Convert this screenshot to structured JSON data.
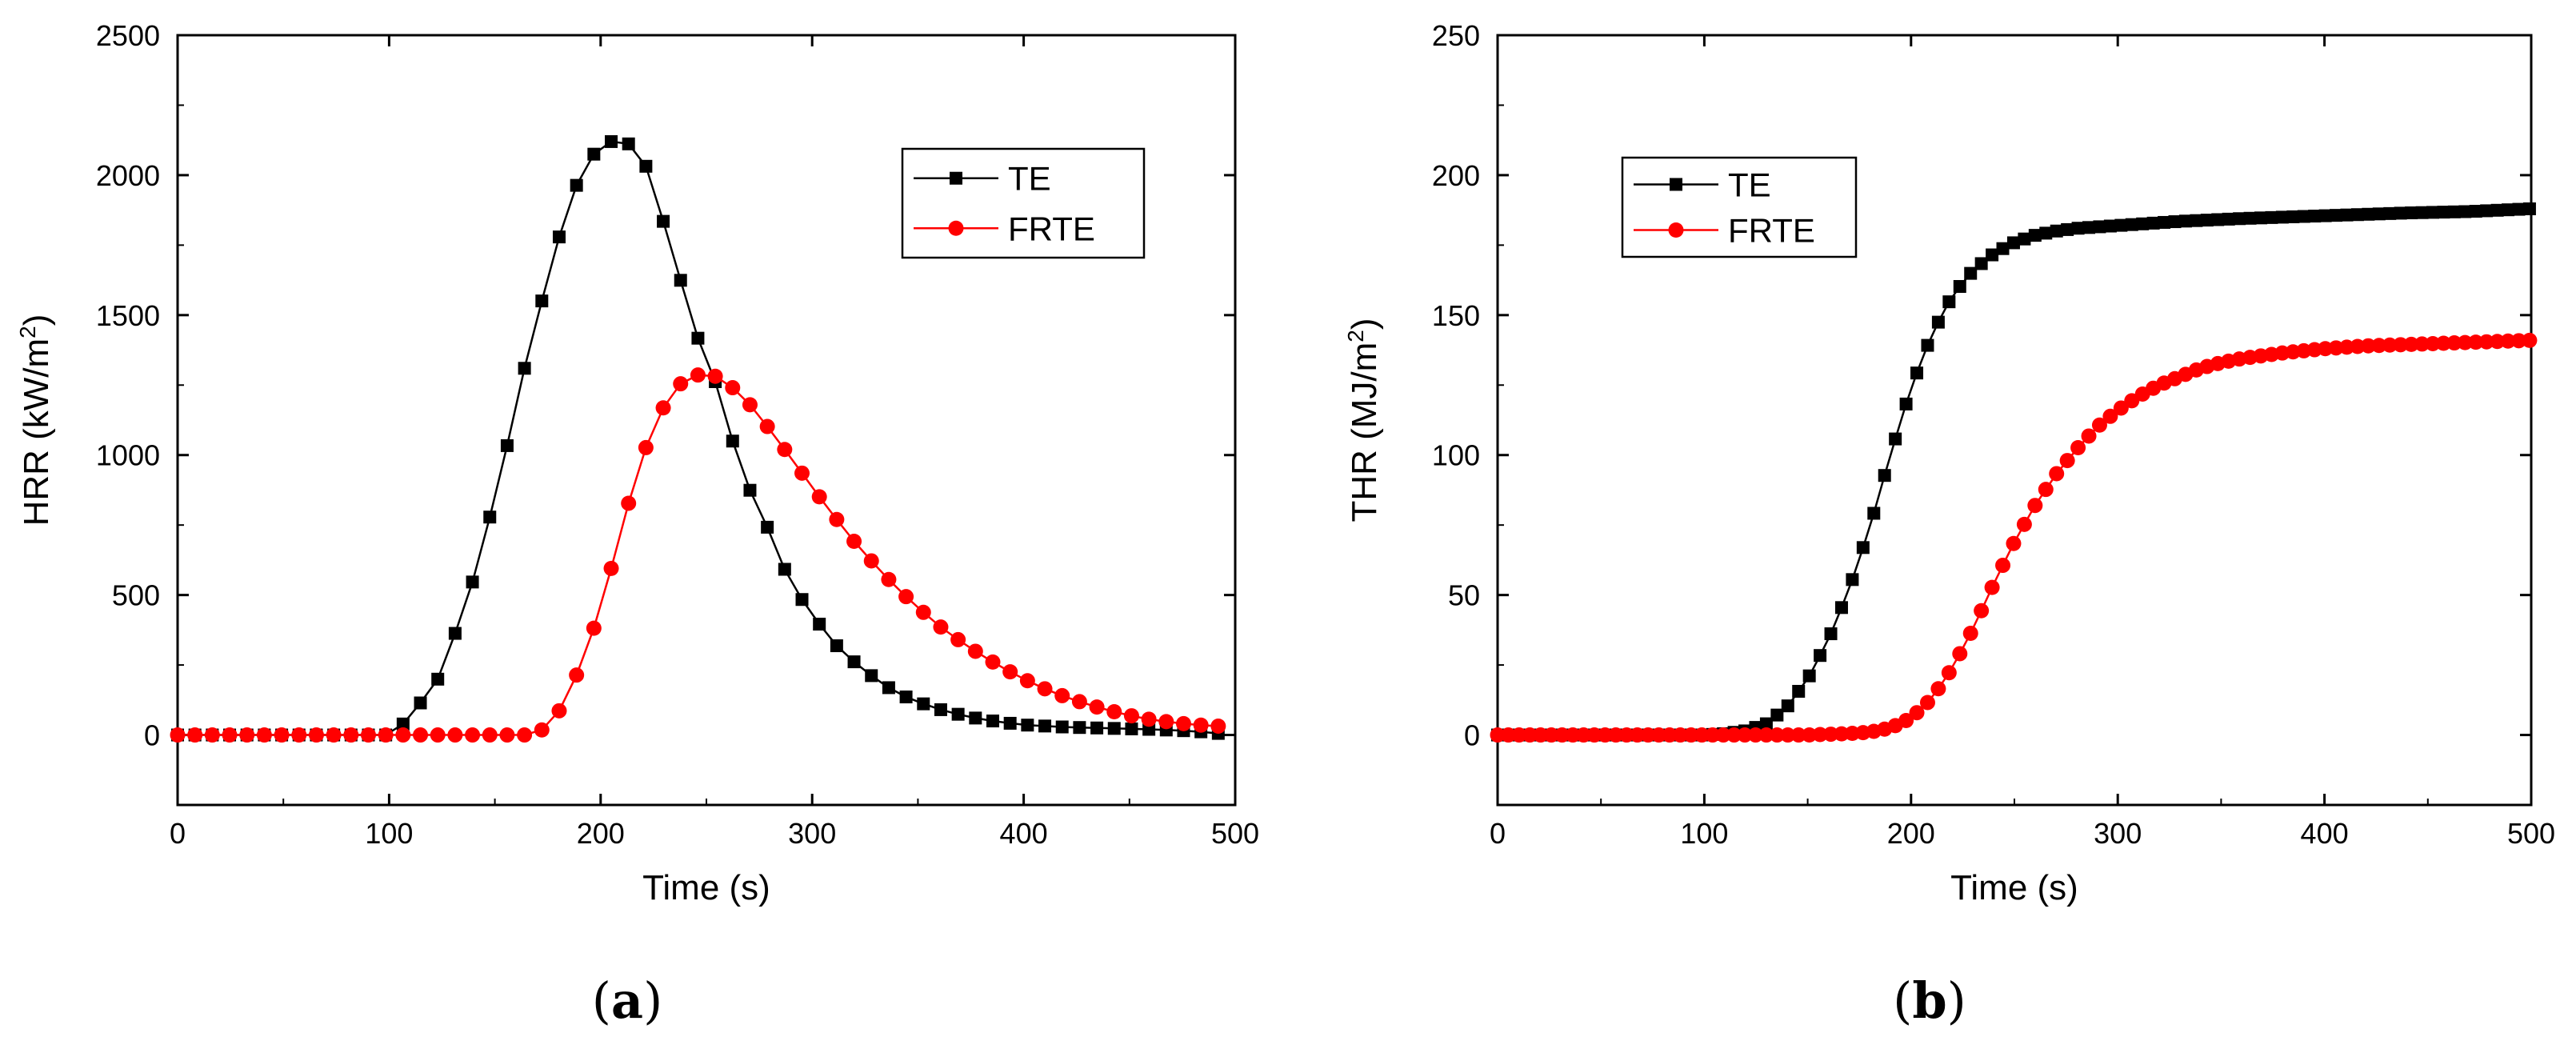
{
  "chart_data": [
    {
      "type": "line",
      "panel": "a",
      "caption_open": "(",
      "caption_letter": "a",
      "caption_close": ")",
      "xlabel": "Time (s)",
      "ylabel_main": "HRR (kW/m",
      "ylabel_sup": "2",
      "ylabel_end": ")",
      "xlim": [
        0,
        500
      ],
      "ylim": [
        -250,
        2500
      ],
      "xticks": [
        0,
        100,
        200,
        300,
        400,
        500
      ],
      "yticks": [
        0,
        500,
        1000,
        1500,
        2000,
        2500
      ],
      "legend_position": "top-right",
      "series": [
        {
          "name": "TE",
          "color": "#000000",
          "marker": "square",
          "points": [
            [
              0,
              0
            ],
            [
              100,
              0
            ],
            [
              104,
              10
            ],
            [
              108,
              55
            ],
            [
              116,
              125
            ],
            [
              124,
              210
            ],
            [
              132,
              380
            ],
            [
              140,
              560
            ],
            [
              148,
              790
            ],
            [
              156,
              1040
            ],
            [
              164,
              1310
            ],
            [
              172,
              1545
            ],
            [
              180,
              1770
            ],
            [
              188,
              1955
            ],
            [
              196,
              2070
            ],
            [
              204,
              2120
            ],
            [
              212,
              2120
            ],
            [
              220,
              2065
            ],
            [
              228,
              1875
            ],
            [
              236,
              1675
            ],
            [
              244,
              1450
            ],
            [
              252,
              1320
            ],
            [
              260,
              1110
            ],
            [
              268,
              910
            ],
            [
              276,
              800
            ],
            [
              284,
              635
            ],
            [
              292,
              520
            ],
            [
              300,
              430
            ],
            [
              310,
              330
            ],
            [
              320,
              260
            ],
            [
              330,
              200
            ],
            [
              340,
              150
            ],
            [
              350,
              118
            ],
            [
              360,
              92
            ],
            [
              370,
              72
            ],
            [
              380,
              56
            ],
            [
              390,
              45
            ],
            [
              400,
              36
            ],
            [
              420,
              28
            ],
            [
              440,
              24
            ],
            [
              460,
              20
            ],
            [
              480,
              14
            ],
            [
              500,
              0
            ]
          ]
        },
        {
          "name": "FRTE",
          "color": "#ff0000",
          "marker": "circle",
          "points": [
            [
              0,
              0
            ],
            [
              40,
              0
            ],
            [
              80,
              0
            ],
            [
              120,
              0
            ],
            [
              160,
              0
            ],
            [
              168,
              0
            ],
            [
              175,
              30
            ],
            [
              180,
              80
            ],
            [
              185,
              160
            ],
            [
              190,
              235
            ],
            [
              195,
              340
            ],
            [
              200,
              455
            ],
            [
              205,
              595
            ],
            [
              210,
              735
            ],
            [
              215,
              880
            ],
            [
              220,
              1000
            ],
            [
              225,
              1095
            ],
            [
              230,
              1175
            ],
            [
              235,
              1235
            ],
            [
              240,
              1270
            ],
            [
              245,
              1285
            ],
            [
              250,
              1290
            ],
            [
              255,
              1280
            ],
            [
              260,
              1255
            ],
            [
              265,
              1225
            ],
            [
              270,
              1185
            ],
            [
              275,
              1140
            ],
            [
              280,
              1090
            ],
            [
              285,
              1040
            ],
            [
              290,
              990
            ],
            [
              300,
              885
            ],
            [
              310,
              785
            ],
            [
              320,
              690
            ],
            [
              330,
              605
            ],
            [
              340,
              525
            ],
            [
              350,
              455
            ],
            [
              360,
              390
            ],
            [
              370,
              335
            ],
            [
              380,
              285
            ],
            [
              390,
              240
            ],
            [
              400,
              200
            ],
            [
              410,
              165
            ],
            [
              420,
              135
            ],
            [
              430,
              110
            ],
            [
              440,
              88
            ],
            [
              450,
              70
            ],
            [
              460,
              55
            ],
            [
              470,
              45
            ],
            [
              480,
              37
            ],
            [
              490,
              32
            ],
            [
              500,
              30
            ]
          ]
        }
      ]
    },
    {
      "type": "line",
      "panel": "b",
      "caption_open": "(",
      "caption_letter": "b",
      "caption_close": ")",
      "xlabel": "Time (s)",
      "ylabel_main": "THR (MJ/m",
      "ylabel_sup": "2",
      "ylabel_end": ")",
      "xlim": [
        0,
        500
      ],
      "ylim": [
        -25,
        250
      ],
      "xticks": [
        0,
        100,
        200,
        300,
        400,
        500
      ],
      "yticks": [
        0,
        50,
        100,
        150,
        200,
        250
      ],
      "legend_position": "top-left",
      "series": [
        {
          "name": "TE",
          "color": "#000000",
          "marker": "square",
          "points": [
            [
              0,
              0
            ],
            [
              100,
              0
            ],
            [
              110,
              0.5
            ],
            [
              120,
              1.5
            ],
            [
              130,
              4
            ],
            [
              140,
              10
            ],
            [
              150,
              20
            ],
            [
              160,
              34
            ],
            [
              170,
              52
            ],
            [
              180,
              74
            ],
            [
              190,
              100
            ],
            [
              200,
              124
            ],
            [
              210,
              143
            ],
            [
              220,
              157
            ],
            [
              230,
              166
            ],
            [
              240,
              172
            ],
            [
              250,
              176
            ],
            [
              260,
              178.5
            ],
            [
              270,
              180
            ],
            [
              280,
              181
            ],
            [
              300,
              182
            ],
            [
              330,
              183.5
            ],
            [
              360,
              184.5
            ],
            [
              400,
              185.5
            ],
            [
              440,
              186.5
            ],
            [
              470,
              187
            ],
            [
              500,
              188
            ]
          ]
        },
        {
          "name": "FRTE",
          "color": "#ff0000",
          "marker": "circle",
          "points": [
            [
              0,
              0
            ],
            [
              100,
              0
            ],
            [
              150,
              0
            ],
            [
              170,
              0.5
            ],
            [
              180,
              1
            ],
            [
              190,
              2.5
            ],
            [
              200,
              6
            ],
            [
              210,
              13
            ],
            [
              220,
              24
            ],
            [
              230,
              38
            ],
            [
              240,
              54
            ],
            [
              250,
              69
            ],
            [
              260,
              82
            ],
            [
              270,
              93
            ],
            [
              280,
              102
            ],
            [
              290,
              110
            ],
            [
              300,
              116
            ],
            [
              310,
              121
            ],
            [
              320,
              125
            ],
            [
              330,
              128
            ],
            [
              340,
              131
            ],
            [
              350,
              133
            ],
            [
              360,
              134.5
            ],
            [
              380,
              136.5
            ],
            [
              400,
              138
            ],
            [
              420,
              139
            ],
            [
              440,
              139.5
            ],
            [
              460,
              140
            ],
            [
              480,
              140.5
            ],
            [
              500,
              141
            ]
          ]
        }
      ]
    }
  ]
}
